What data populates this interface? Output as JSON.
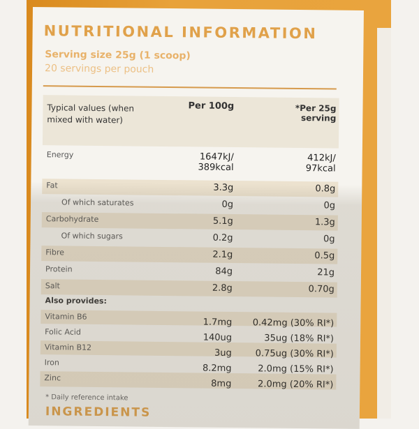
{
  "title": "NUTRITIONAL INFORMATION",
  "serving_size": "Serving size 25g (1 scoop)",
  "servings": "20 servings per pouch",
  "header": {
    "col1": "Typical values (when mixed with water)",
    "col2": "Per 100g",
    "col3": "*Per 25g serving"
  },
  "rows": [
    {
      "label": "Energy",
      "per100": "1647kJ/ 389kcal",
      "per25": "412kJ/ 97kcal"
    },
    {
      "label": "Fat",
      "per100": "3.3g",
      "per25": "0.8g"
    },
    {
      "label": "Of which saturates",
      "per100": "0g",
      "per25": "0g"
    },
    {
      "label": "Carbohydrate",
      "per100": "5.1g",
      "per25": "1.3g"
    },
    {
      "label": "Of which sugars",
      "per100": "0.2g",
      "per25": "0g"
    },
    {
      "label": "Fibre",
      "per100": "2.1g",
      "per25": "0.5g"
    },
    {
      "label": "Protein",
      "per100": "84g",
      "per25": "21g"
    },
    {
      "label": "Salt",
      "per100": "2.8g",
      "per25": "0.70g"
    }
  ],
  "also_provides": "Also provides:",
  "vitamins": [
    {
      "label": "Vitamin B6",
      "per100": "1.7mg",
      "per25": "0.42mg (30% RI*)"
    },
    {
      "label": "Folic Acid",
      "per100": "140ug",
      "per25": "35ug (18% RI*)"
    },
    {
      "label": "Vitamin B12",
      "per100": "3ug",
      "per25": "0.75ug (30% RI*)"
    },
    {
      "label": "Iron",
      "per100": "8.2mg",
      "per25": "2.0mg (15% RI*)"
    },
    {
      "label": "Zinc",
      "per100": "8mg",
      "per25": "2.0mg (20% RI*)"
    }
  ],
  "footnote": "* Daily reference intake",
  "ingredients_heading": "INGREDIENTS",
  "colors": {
    "accent": "#e0a14a",
    "background": "#e8a23a"
  }
}
